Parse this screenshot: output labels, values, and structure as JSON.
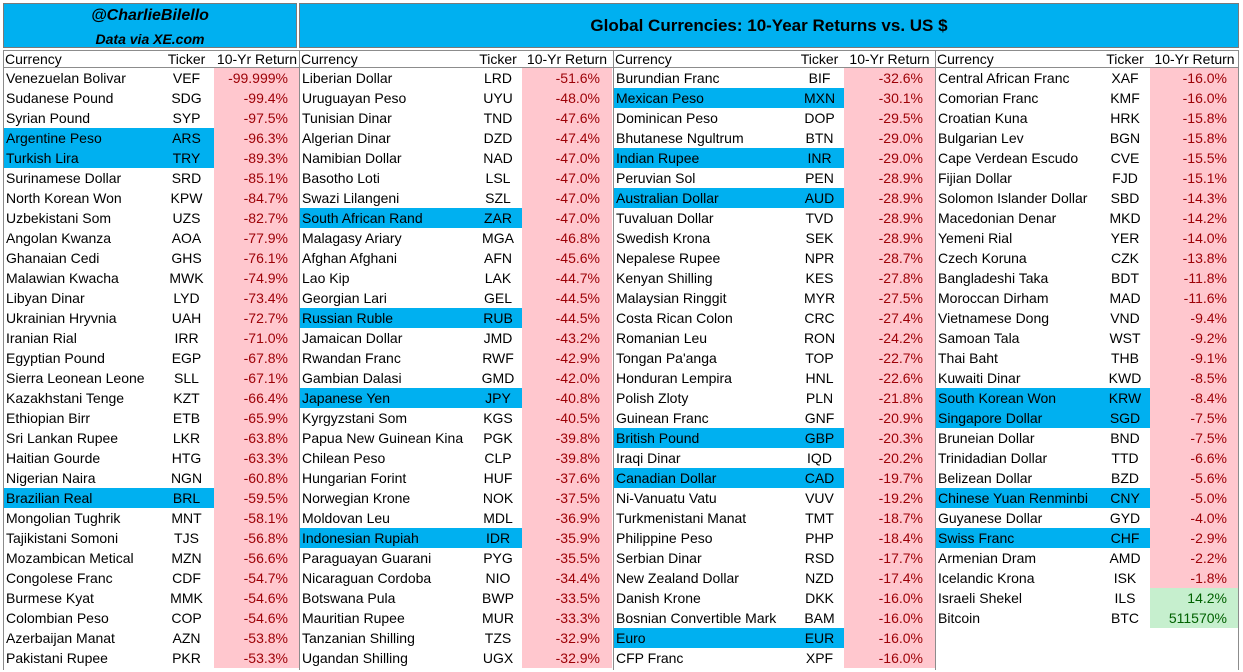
{
  "header": {
    "handle": "@CharlieBilello",
    "source": "Data via XE.com",
    "title": "Global Currencies: 10-Year Returns vs. US $"
  },
  "colors": {
    "highlight": "#00b0f0",
    "negative": "#ffc7ce",
    "positive": "#c6efce"
  },
  "columns_headers": {
    "currency": "Currency",
    "ticker": "Ticker",
    "ret": "10-Yr Return"
  },
  "chart_data": {
    "type": "table",
    "title": "Global Currencies: 10-Year Returns vs. US $",
    "columns": [
      "Currency",
      "Ticker",
      "10-Yr Return"
    ],
    "groups": [
      [
        {
          "currency": "Venezuelan Bolivar",
          "ticker": "VEF",
          "ret": "-99.999%",
          "value": -99.999,
          "hl": false
        },
        {
          "currency": "Sudanese Pound",
          "ticker": "SDG",
          "ret": "-99.4%",
          "value": -99.4,
          "hl": false
        },
        {
          "currency": "Syrian Pound",
          "ticker": "SYP",
          "ret": "-97.5%",
          "value": -97.5,
          "hl": false
        },
        {
          "currency": "Argentine Peso",
          "ticker": "ARS",
          "ret": "-96.3%",
          "value": -96.3,
          "hl": true
        },
        {
          "currency": "Turkish Lira",
          "ticker": "TRY",
          "ret": "-89.3%",
          "value": -89.3,
          "hl": true
        },
        {
          "currency": "Surinamese Dollar",
          "ticker": "SRD",
          "ret": "-85.1%",
          "value": -85.1,
          "hl": false
        },
        {
          "currency": "North Korean Won",
          "ticker": "KPW",
          "ret": "-84.7%",
          "value": -84.7,
          "hl": false
        },
        {
          "currency": "Uzbekistani Som",
          "ticker": "UZS",
          "ret": "-82.7%",
          "value": -82.7,
          "hl": false
        },
        {
          "currency": "Angolan Kwanza",
          "ticker": "AOA",
          "ret": "-77.9%",
          "value": -77.9,
          "hl": false
        },
        {
          "currency": "Ghanaian Cedi",
          "ticker": "GHS",
          "ret": "-76.1%",
          "value": -76.1,
          "hl": false
        },
        {
          "currency": "Malawian Kwacha",
          "ticker": "MWK",
          "ret": "-74.9%",
          "value": -74.9,
          "hl": false
        },
        {
          "currency": "Libyan Dinar",
          "ticker": "LYD",
          "ret": "-73.4%",
          "value": -73.4,
          "hl": false
        },
        {
          "currency": "Ukrainian Hryvnia",
          "ticker": "UAH",
          "ret": "-72.7%",
          "value": -72.7,
          "hl": false
        },
        {
          "currency": "Iranian Rial",
          "ticker": "IRR",
          "ret": "-71.0%",
          "value": -71.0,
          "hl": false
        },
        {
          "currency": "Egyptian Pound",
          "ticker": "EGP",
          "ret": "-67.8%",
          "value": -67.8,
          "hl": false
        },
        {
          "currency": "Sierra Leonean Leone",
          "ticker": "SLL",
          "ret": "-67.1%",
          "value": -67.1,
          "hl": false
        },
        {
          "currency": "Kazakhstani Tenge",
          "ticker": "KZT",
          "ret": "-66.4%",
          "value": -66.4,
          "hl": false
        },
        {
          "currency": "Ethiopian Birr",
          "ticker": "ETB",
          "ret": "-65.9%",
          "value": -65.9,
          "hl": false
        },
        {
          "currency": "Sri Lankan Rupee",
          "ticker": "LKR",
          "ret": "-63.8%",
          "value": -63.8,
          "hl": false
        },
        {
          "currency": "Haitian Gourde",
          "ticker": "HTG",
          "ret": "-63.3%",
          "value": -63.3,
          "hl": false
        },
        {
          "currency": "Nigerian Naira",
          "ticker": "NGN",
          "ret": "-60.8%",
          "value": -60.8,
          "hl": false
        },
        {
          "currency": "Brazilian Real",
          "ticker": "BRL",
          "ret": "-59.5%",
          "value": -59.5,
          "hl": true
        },
        {
          "currency": "Mongolian Tughrik",
          "ticker": "MNT",
          "ret": "-58.1%",
          "value": -58.1,
          "hl": false
        },
        {
          "currency": "Tajikistani Somoni",
          "ticker": "TJS",
          "ret": "-56.8%",
          "value": -56.8,
          "hl": false
        },
        {
          "currency": "Mozambican Metical",
          "ticker": "MZN",
          "ret": "-56.6%",
          "value": -56.6,
          "hl": false
        },
        {
          "currency": "Congolese Franc",
          "ticker": "CDF",
          "ret": "-54.7%",
          "value": -54.7,
          "hl": false
        },
        {
          "currency": "Burmese Kyat",
          "ticker": "MMK",
          "ret": "-54.6%",
          "value": -54.6,
          "hl": false
        },
        {
          "currency": "Colombian Peso",
          "ticker": "COP",
          "ret": "-54.6%",
          "value": -54.6,
          "hl": false
        },
        {
          "currency": "Azerbaijan Manat",
          "ticker": "AZN",
          "ret": "-53.8%",
          "value": -53.8,
          "hl": false
        },
        {
          "currency": "Pakistani Rupee",
          "ticker": "PKR",
          "ret": "-53.3%",
          "value": -53.3,
          "hl": false
        }
      ],
      [
        {
          "currency": "Liberian Dollar",
          "ticker": "LRD",
          "ret": "-51.6%",
          "value": -51.6,
          "hl": false
        },
        {
          "currency": "Uruguayan Peso",
          "ticker": "UYU",
          "ret": "-48.0%",
          "value": -48.0,
          "hl": false
        },
        {
          "currency": "Tunisian Dinar",
          "ticker": "TND",
          "ret": "-47.6%",
          "value": -47.6,
          "hl": false
        },
        {
          "currency": "Algerian Dinar",
          "ticker": "DZD",
          "ret": "-47.4%",
          "value": -47.4,
          "hl": false
        },
        {
          "currency": "Namibian Dollar",
          "ticker": "NAD",
          "ret": "-47.0%",
          "value": -47.0,
          "hl": false
        },
        {
          "currency": "Basotho Loti",
          "ticker": "LSL",
          "ret": "-47.0%",
          "value": -47.0,
          "hl": false
        },
        {
          "currency": "Swazi Lilangeni",
          "ticker": "SZL",
          "ret": "-47.0%",
          "value": -47.0,
          "hl": false
        },
        {
          "currency": "South African Rand",
          "ticker": "ZAR",
          "ret": "-47.0%",
          "value": -47.0,
          "hl": true
        },
        {
          "currency": "Malagasy Ariary",
          "ticker": "MGA",
          "ret": "-46.8%",
          "value": -46.8,
          "hl": false
        },
        {
          "currency": "Afghan Afghani",
          "ticker": "AFN",
          "ret": "-45.6%",
          "value": -45.6,
          "hl": false
        },
        {
          "currency": "Lao Kip",
          "ticker": "LAK",
          "ret": "-44.7%",
          "value": -44.7,
          "hl": false
        },
        {
          "currency": "Georgian Lari",
          "ticker": "GEL",
          "ret": "-44.5%",
          "value": -44.5,
          "hl": false
        },
        {
          "currency": "Russian Ruble",
          "ticker": "RUB",
          "ret": "-44.5%",
          "value": -44.5,
          "hl": true
        },
        {
          "currency": "Jamaican Dollar",
          "ticker": "JMD",
          "ret": "-43.2%",
          "value": -43.2,
          "hl": false
        },
        {
          "currency": "Rwandan Franc",
          "ticker": "RWF",
          "ret": "-42.9%",
          "value": -42.9,
          "hl": false
        },
        {
          "currency": "Gambian Dalasi",
          "ticker": "GMD",
          "ret": "-42.0%",
          "value": -42.0,
          "hl": false
        },
        {
          "currency": "Japanese Yen",
          "ticker": "JPY",
          "ret": "-40.8%",
          "value": -40.8,
          "hl": true
        },
        {
          "currency": "Kyrgyzstani Som",
          "ticker": "KGS",
          "ret": "-40.5%",
          "value": -40.5,
          "hl": false
        },
        {
          "currency": "Papua New Guinean Kina",
          "ticker": "PGK",
          "ret": "-39.8%",
          "value": -39.8,
          "hl": false
        },
        {
          "currency": "Chilean Peso",
          "ticker": "CLP",
          "ret": "-39.8%",
          "value": -39.8,
          "hl": false
        },
        {
          "currency": "Hungarian Forint",
          "ticker": "HUF",
          "ret": "-37.6%",
          "value": -37.6,
          "hl": false
        },
        {
          "currency": "Norwegian Krone",
          "ticker": "NOK",
          "ret": "-37.5%",
          "value": -37.5,
          "hl": false
        },
        {
          "currency": "Moldovan Leu",
          "ticker": "MDL",
          "ret": "-36.9%",
          "value": -36.9,
          "hl": false
        },
        {
          "currency": "Indonesian Rupiah",
          "ticker": "IDR",
          "ret": "-35.9%",
          "value": -35.9,
          "hl": true
        },
        {
          "currency": "Paraguayan Guarani",
          "ticker": "PYG",
          "ret": "-35.5%",
          "value": -35.5,
          "hl": false
        },
        {
          "currency": "Nicaraguan Cordoba",
          "ticker": "NIO",
          "ret": "-34.4%",
          "value": -34.4,
          "hl": false
        },
        {
          "currency": "Botswana Pula",
          "ticker": "BWP",
          "ret": "-33.5%",
          "value": -33.5,
          "hl": false
        },
        {
          "currency": "Mauritian Rupee",
          "ticker": "MUR",
          "ret": "-33.3%",
          "value": -33.3,
          "hl": false
        },
        {
          "currency": "Tanzanian Shilling",
          "ticker": "TZS",
          "ret": "-32.9%",
          "value": -32.9,
          "hl": false
        },
        {
          "currency": "Ugandan Shilling",
          "ticker": "UGX",
          "ret": "-32.9%",
          "value": -32.9,
          "hl": false
        }
      ],
      [
        {
          "currency": "Burundian Franc",
          "ticker": "BIF",
          "ret": "-32.6%",
          "value": -32.6,
          "hl": false
        },
        {
          "currency": "Mexican Peso",
          "ticker": "MXN",
          "ret": "-30.1%",
          "value": -30.1,
          "hl": true
        },
        {
          "currency": "Dominican Peso",
          "ticker": "DOP",
          "ret": "-29.5%",
          "value": -29.5,
          "hl": false
        },
        {
          "currency": "Bhutanese Ngultrum",
          "ticker": "BTN",
          "ret": "-29.0%",
          "value": -29.0,
          "hl": false
        },
        {
          "currency": "Indian Rupee",
          "ticker": "INR",
          "ret": "-29.0%",
          "value": -29.0,
          "hl": true
        },
        {
          "currency": "Peruvian Sol",
          "ticker": "PEN",
          "ret": "-28.9%",
          "value": -28.9,
          "hl": false
        },
        {
          "currency": "Australian Dollar",
          "ticker": "AUD",
          "ret": "-28.9%",
          "value": -28.9,
          "hl": true
        },
        {
          "currency": "Tuvaluan Dollar",
          "ticker": "TVD",
          "ret": "-28.9%",
          "value": -28.9,
          "hl": false
        },
        {
          "currency": "Swedish Krona",
          "ticker": "SEK",
          "ret": "-28.9%",
          "value": -28.9,
          "hl": false
        },
        {
          "currency": "Nepalese Rupee",
          "ticker": "NPR",
          "ret": "-28.7%",
          "value": -28.7,
          "hl": false
        },
        {
          "currency": "Kenyan Shilling",
          "ticker": "KES",
          "ret": "-27.8%",
          "value": -27.8,
          "hl": false
        },
        {
          "currency": "Malaysian Ringgit",
          "ticker": "MYR",
          "ret": "-27.5%",
          "value": -27.5,
          "hl": false
        },
        {
          "currency": "Costa Rican Colon",
          "ticker": "CRC",
          "ret": "-27.4%",
          "value": -27.4,
          "hl": false
        },
        {
          "currency": "Romanian Leu",
          "ticker": "RON",
          "ret": "-24.2%",
          "value": -24.2,
          "hl": false
        },
        {
          "currency": "Tongan Pa'anga",
          "ticker": "TOP",
          "ret": "-22.7%",
          "value": -22.7,
          "hl": false
        },
        {
          "currency": "Honduran Lempira",
          "ticker": "HNL",
          "ret": "-22.6%",
          "value": -22.6,
          "hl": false
        },
        {
          "currency": "Polish Zloty",
          "ticker": "PLN",
          "ret": "-21.8%",
          "value": -21.8,
          "hl": false
        },
        {
          "currency": "Guinean Franc",
          "ticker": "GNF",
          "ret": "-20.9%",
          "value": -20.9,
          "hl": false
        },
        {
          "currency": "British Pound",
          "ticker": "GBP",
          "ret": "-20.3%",
          "value": -20.3,
          "hl": true
        },
        {
          "currency": "Iraqi Dinar",
          "ticker": "IQD",
          "ret": "-20.2%",
          "value": -20.2,
          "hl": false
        },
        {
          "currency": "Canadian Dollar",
          "ticker": "CAD",
          "ret": "-19.7%",
          "value": -19.7,
          "hl": true
        },
        {
          "currency": "Ni-Vanuatu Vatu",
          "ticker": "VUV",
          "ret": "-19.2%",
          "value": -19.2,
          "hl": false
        },
        {
          "currency": "Turkmenistani Manat",
          "ticker": "TMT",
          "ret": "-18.7%",
          "value": -18.7,
          "hl": false
        },
        {
          "currency": "Philippine Peso",
          "ticker": "PHP",
          "ret": "-18.4%",
          "value": -18.4,
          "hl": false
        },
        {
          "currency": "Serbian Dinar",
          "ticker": "RSD",
          "ret": "-17.7%",
          "value": -17.7,
          "hl": false
        },
        {
          "currency": "New Zealand Dollar",
          "ticker": "NZD",
          "ret": "-17.4%",
          "value": -17.4,
          "hl": false
        },
        {
          "currency": "Danish Krone",
          "ticker": "DKK",
          "ret": "-16.0%",
          "value": -16.0,
          "hl": false
        },
        {
          "currency": "Bosnian Convertible Mark",
          "ticker": "BAM",
          "ret": "-16.0%",
          "value": -16.0,
          "hl": false
        },
        {
          "currency": "Euro",
          "ticker": "EUR",
          "ret": "-16.0%",
          "value": -16.0,
          "hl": true
        },
        {
          "currency": "CFP Franc",
          "ticker": "XPF",
          "ret": "-16.0%",
          "value": -16.0,
          "hl": false
        }
      ],
      [
        {
          "currency": "Central African Franc",
          "ticker": "XAF",
          "ret": "-16.0%",
          "value": -16.0,
          "hl": false
        },
        {
          "currency": "Comorian Franc",
          "ticker": "KMF",
          "ret": "-16.0%",
          "value": -16.0,
          "hl": false
        },
        {
          "currency": "Croatian Kuna",
          "ticker": "HRK",
          "ret": "-15.8%",
          "value": -15.8,
          "hl": false
        },
        {
          "currency": "Bulgarian Lev",
          "ticker": "BGN",
          "ret": "-15.8%",
          "value": -15.8,
          "hl": false
        },
        {
          "currency": "Cape Verdean Escudo",
          "ticker": "CVE",
          "ret": "-15.5%",
          "value": -15.5,
          "hl": false
        },
        {
          "currency": "Fijian Dollar",
          "ticker": "FJD",
          "ret": "-15.1%",
          "value": -15.1,
          "hl": false
        },
        {
          "currency": "Solomon Islander Dollar",
          "ticker": "SBD",
          "ret": "-14.3%",
          "value": -14.3,
          "hl": false
        },
        {
          "currency": "Macedonian Denar",
          "ticker": "MKD",
          "ret": "-14.2%",
          "value": -14.2,
          "hl": false
        },
        {
          "currency": "Yemeni Rial",
          "ticker": "YER",
          "ret": "-14.0%",
          "value": -14.0,
          "hl": false
        },
        {
          "currency": "Czech Koruna",
          "ticker": "CZK",
          "ret": "-13.8%",
          "value": -13.8,
          "hl": false
        },
        {
          "currency": "Bangladeshi Taka",
          "ticker": "BDT",
          "ret": "-11.8%",
          "value": -11.8,
          "hl": false
        },
        {
          "currency": "Moroccan Dirham",
          "ticker": "MAD",
          "ret": "-11.6%",
          "value": -11.6,
          "hl": false
        },
        {
          "currency": "Vietnamese Dong",
          "ticker": "VND",
          "ret": "-9.4%",
          "value": -9.4,
          "hl": false
        },
        {
          "currency": "Samoan Tala",
          "ticker": "WST",
          "ret": "-9.2%",
          "value": -9.2,
          "hl": false
        },
        {
          "currency": "Thai Baht",
          "ticker": "THB",
          "ret": "-9.1%",
          "value": -9.1,
          "hl": false
        },
        {
          "currency": "Kuwaiti Dinar",
          "ticker": "KWD",
          "ret": "-8.5%",
          "value": -8.5,
          "hl": false
        },
        {
          "currency": "South Korean Won",
          "ticker": "KRW",
          "ret": "-8.4%",
          "value": -8.4,
          "hl": true
        },
        {
          "currency": "Singapore Dollar",
          "ticker": "SGD",
          "ret": "-7.5%",
          "value": -7.5,
          "hl": true
        },
        {
          "currency": "Bruneian Dollar",
          "ticker": "BND",
          "ret": "-7.5%",
          "value": -7.5,
          "hl": false
        },
        {
          "currency": "Trinidadian Dollar",
          "ticker": "TTD",
          "ret": "-6.6%",
          "value": -6.6,
          "hl": false
        },
        {
          "currency": "Belizean Dollar",
          "ticker": "BZD",
          "ret": "-5.6%",
          "value": -5.6,
          "hl": false
        },
        {
          "currency": "Chinese Yuan Renminbi",
          "ticker": "CNY",
          "ret": "-5.0%",
          "value": -5.0,
          "hl": true
        },
        {
          "currency": "Guyanese Dollar",
          "ticker": "GYD",
          "ret": "-4.0%",
          "value": -4.0,
          "hl": false
        },
        {
          "currency": "Swiss Franc",
          "ticker": "CHF",
          "ret": "-2.9%",
          "value": -2.9,
          "hl": true
        },
        {
          "currency": "Armenian Dram",
          "ticker": "AMD",
          "ret": "-2.2%",
          "value": -2.2,
          "hl": false
        },
        {
          "currency": "Icelandic Krona",
          "ticker": "ISK",
          "ret": "-1.8%",
          "value": -1.8,
          "hl": false
        },
        {
          "currency": "Israeli Shekel",
          "ticker": "ILS",
          "ret": "14.2%",
          "value": 14.2,
          "hl": false
        },
        {
          "currency": "Bitcoin",
          "ticker": "BTC",
          "ret": "511570%",
          "value": 511570,
          "hl": false
        }
      ]
    ]
  }
}
